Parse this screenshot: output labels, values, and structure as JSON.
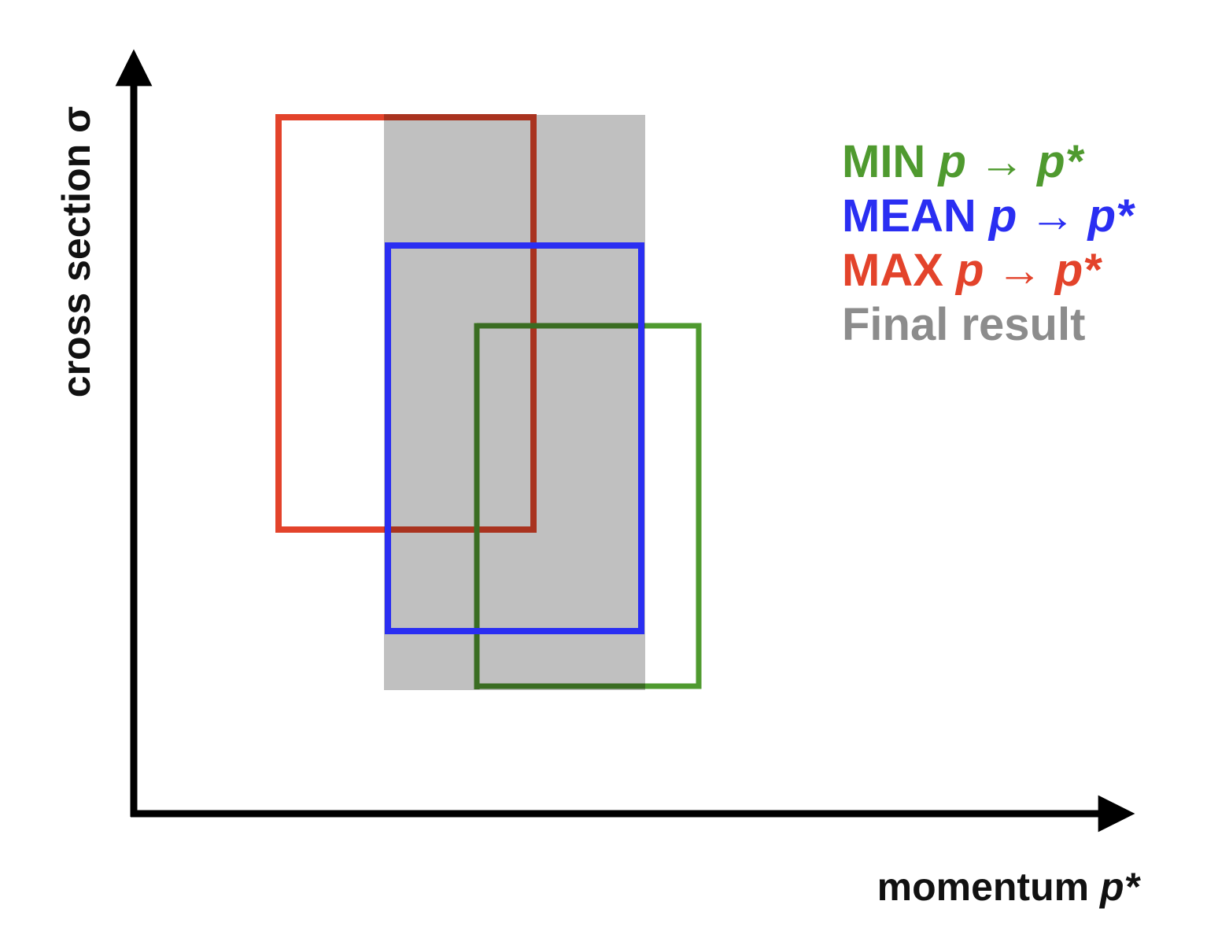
{
  "colors": {
    "min": "#4f9a2f",
    "mean": "#2a2ef2",
    "max": "#e3432b",
    "final": "#8c8c8c",
    "final_fill": "#c0c0c0",
    "axis": "#000000"
  },
  "axes": {
    "x_label": "momentum",
    "x_symbol": "p*",
    "y_label": "cross section σ"
  },
  "legend": {
    "min": {
      "word": "MIN",
      "expr": "p",
      "arrow": "→",
      "target": "p*"
    },
    "mean": {
      "word": "MEAN",
      "expr": "p",
      "arrow": "→",
      "target": "p*"
    },
    "max": {
      "word": "MAX",
      "expr": "p",
      "arrow": "→",
      "target": "p*"
    },
    "final": {
      "word": "Final result"
    }
  }
}
